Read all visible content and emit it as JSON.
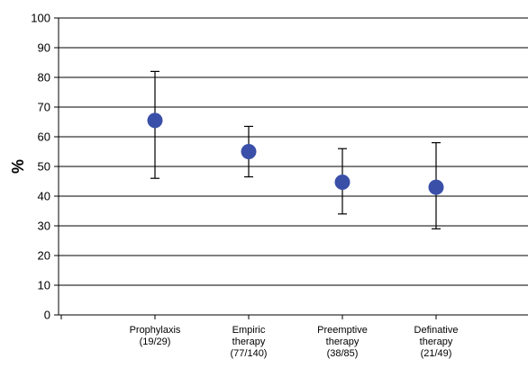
{
  "chart_data": {
    "type": "scatter",
    "ylabel": "%",
    "ylim": [
      0,
      100
    ],
    "yticks": [
      "0",
      "10",
      "20",
      "30",
      "40",
      "50",
      "60",
      "70",
      "80",
      "90",
      "100"
    ],
    "grid": true,
    "categories": [
      [
        "Prophylaxis",
        "(19/29)"
      ],
      [
        "Empiric",
        "therapy",
        "(77/140)"
      ],
      [
        "Preemptive",
        "therapy",
        "(38/85)"
      ],
      [
        "Definative",
        "therapy",
        "(21/49)"
      ]
    ],
    "series": [
      {
        "values": [
          65.5,
          55,
          44.7,
          43
        ],
        "error_low": [
          46,
          46.5,
          34,
          29
        ],
        "error_high": [
          82,
          63.5,
          56,
          58
        ]
      }
    ],
    "colors": {
      "marker": "#3a50a8",
      "grid": "#000000",
      "errorbar": "#000000"
    }
  }
}
